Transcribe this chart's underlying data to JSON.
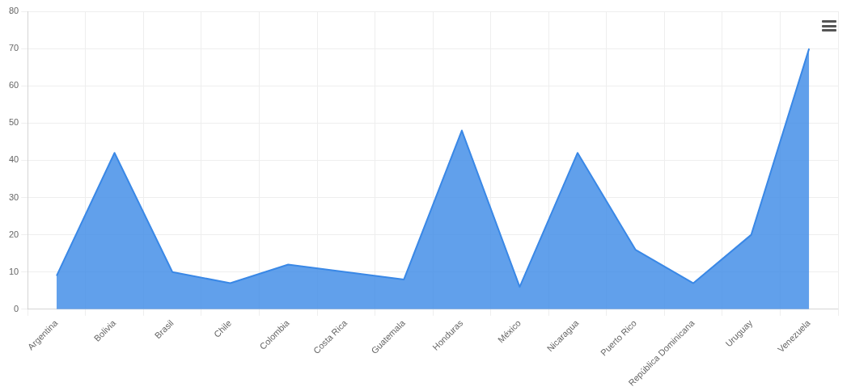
{
  "chart_data": {
    "type": "area",
    "categories": [
      "Argentina",
      "Bolivia",
      "Brasil",
      "Chile",
      "Colombia",
      "Costa Rica",
      "Guatemala",
      "Honduras",
      "México",
      "Nicaragua",
      "Puerto Rico",
      "República Dominicana",
      "Uruguay",
      "Venezuela"
    ],
    "series": [
      {
        "color": "#3a88e6",
        "values": [
          9,
          42,
          10,
          7,
          12,
          10,
          8,
          48,
          6,
          42,
          16,
          7,
          20,
          70
        ]
      }
    ],
    "ylim": [
      0,
      80
    ],
    "yticks": [
      0,
      10,
      20,
      30,
      40,
      50,
      60,
      70,
      80
    ],
    "grid": true,
    "legend": false,
    "marker": "none",
    "line_style": "solid"
  }
}
